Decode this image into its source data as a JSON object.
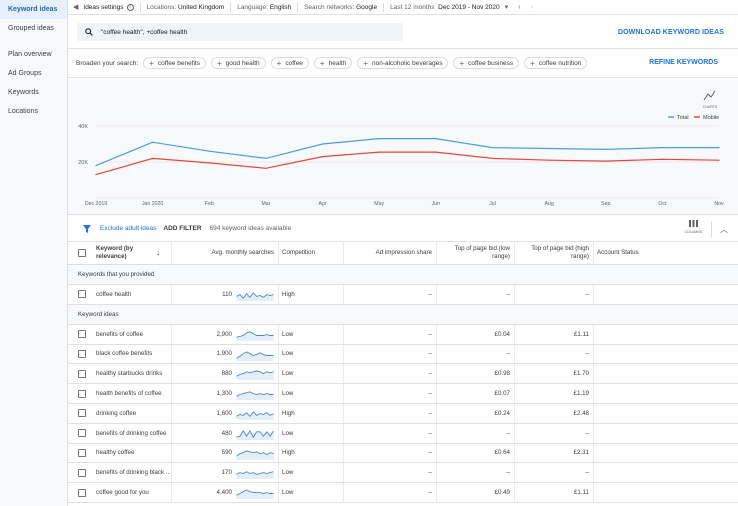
{
  "sidebar": {
    "items": [
      {
        "label": "Keyword ideas",
        "active": true
      },
      {
        "label": "Grouped ideas",
        "active": false
      },
      {
        "label": "Plan overview",
        "active": false
      },
      {
        "label": "Ad Groups",
        "active": false
      },
      {
        "label": "Keywords",
        "active": false
      },
      {
        "label": "Locations",
        "active": false
      }
    ]
  },
  "topbar": {
    "title": "Ideas settings",
    "locations_label": "Locations:",
    "locations_value": "United Kingdom",
    "language_label": "Language:",
    "language_value": "English",
    "networks_label": "Search networks:",
    "networks_value": "Google",
    "period_label": "Last 12 months",
    "period_value": "Dec 2019 - Nov 2020"
  },
  "search": {
    "query": "\"coffee health\", +coffee health",
    "download_label": "DOWNLOAD KEYWORD IDEAS"
  },
  "broaden": {
    "label": "Broaden your search:",
    "chips": [
      "coffee benefits",
      "good health",
      "coffee",
      "health",
      "non-alcoholic beverages",
      "coffee business",
      "coffee nutrition"
    ],
    "refine_label": "REFINE KEYWORDS"
  },
  "chart_controls": {
    "charts_label": "CHARTS",
    "legend_total": "Total",
    "legend_mobile": "Mobile",
    "colors": {
      "total": "#4a9fe0",
      "mobile": "#e8453c"
    }
  },
  "chart_data": {
    "type": "line",
    "x": [
      "Dec 2019",
      "Jan 2020",
      "Feb",
      "Mar",
      "Apr",
      "May",
      "Jun",
      "Jul",
      "Aug",
      "Sep",
      "Oct",
      "Nov"
    ],
    "ytick_labels": [
      "20K",
      "40K"
    ],
    "ylim": [
      0,
      40000
    ],
    "series": [
      {
        "name": "Total",
        "values": [
          18000,
          31000,
          26000,
          22000,
          30000,
          33000,
          33000,
          28000,
          27500,
          27000,
          28000,
          28000
        ]
      },
      {
        "name": "Mobile",
        "values": [
          13000,
          22000,
          19500,
          16500,
          23000,
          25500,
          25500,
          22000,
          21000,
          20500,
          21500,
          21000
        ]
      }
    ]
  },
  "filter": {
    "exclude_label": "Exclude adult ideas",
    "add_filter_label": "ADD FILTER",
    "available_label": "694 keyword ideas available",
    "columns_label": "COLUMNS"
  },
  "table": {
    "headers": {
      "keyword": "Keyword (by relevance)",
      "searches": "Avg. monthly searches",
      "competition": "Competition",
      "impression": "Ad impression share",
      "bid_low": "Top of page bid (low range)",
      "bid_high": "Top of page bid (high range)",
      "status": "Account Status"
    },
    "provided_section": "Keywords that you provided",
    "ideas_section": "Keyword ideas",
    "provided_rows": [
      {
        "keyword": "coffee health",
        "searches": "110",
        "competition": "High",
        "impression": "–",
        "bid_low": "–",
        "bid_high": "–",
        "spark": [
          0.4,
          0.6,
          0.2,
          0.7,
          0.3,
          0.8,
          0.4,
          0.5,
          0.3,
          0.6,
          0.5,
          0.6
        ]
      }
    ],
    "idea_rows": [
      {
        "keyword": "benefits of coffee",
        "searches": "2,900",
        "competition": "Low",
        "impression": "–",
        "bid_low": "£0.04",
        "bid_high": "£1.11",
        "spark": [
          0.3,
          0.4,
          0.5,
          0.8,
          0.9,
          0.7,
          0.5,
          0.5,
          0.5,
          0.6,
          0.5,
          0.5
        ]
      },
      {
        "keyword": "black coffee benefits",
        "searches": "1,900",
        "competition": "Low",
        "impression": "–",
        "bid_low": "–",
        "bid_high": "–",
        "spark": [
          0.2,
          0.4,
          0.7,
          0.9,
          0.7,
          0.5,
          0.6,
          0.8,
          0.6,
          0.5,
          0.5,
          0.5
        ]
      },
      {
        "keyword": "healthy starbucks drinks",
        "searches": "880",
        "competition": "Low",
        "impression": "–",
        "bid_low": "£0.98",
        "bid_high": "£1.70",
        "spark": [
          0.3,
          0.5,
          0.6,
          0.8,
          0.7,
          0.8,
          0.9,
          0.8,
          0.6,
          0.8,
          0.7,
          0.8
        ]
      },
      {
        "keyword": "health benefits of coffee",
        "searches": "1,300",
        "competition": "Low",
        "impression": "–",
        "bid_low": "£0.07",
        "bid_high": "£1.19",
        "spark": [
          0.3,
          0.5,
          0.6,
          0.7,
          0.8,
          0.6,
          0.5,
          0.6,
          0.5,
          0.6,
          0.5,
          0.5
        ]
      },
      {
        "keyword": "drinking coffee",
        "searches": "1,600",
        "competition": "High",
        "impression": "–",
        "bid_low": "£0.24",
        "bid_high": "£2.48",
        "spark": [
          0.3,
          0.5,
          0.4,
          0.7,
          0.3,
          0.8,
          0.4,
          0.6,
          0.5,
          0.7,
          0.4,
          0.6
        ]
      },
      {
        "keyword": "benefits of drinking coffee",
        "searches": "480",
        "competition": "Low",
        "impression": "–",
        "bid_low": "–",
        "bid_high": "–",
        "spark": [
          0.2,
          0.3,
          0.9,
          0.3,
          0.9,
          0.2,
          0.8,
          0.8,
          0.3,
          0.8,
          0.3,
          0.9
        ]
      },
      {
        "keyword": "healthy coffee",
        "searches": "590",
        "competition": "High",
        "impression": "–",
        "bid_low": "£0.64",
        "bid_high": "£2.31",
        "spark": [
          0.3,
          0.6,
          0.7,
          0.9,
          0.8,
          0.7,
          0.8,
          0.6,
          0.7,
          0.5,
          0.7,
          0.6
        ]
      },
      {
        "keyword": "benefits of drinking black ...",
        "searches": "170",
        "competition": "Low",
        "impression": "–",
        "bid_low": "–",
        "bid_high": "–",
        "spark": [
          0.4,
          0.6,
          0.5,
          0.7,
          0.5,
          0.6,
          0.4,
          0.5,
          0.6,
          0.5,
          0.6,
          0.7
        ]
      },
      {
        "keyword": "coffee good for you",
        "searches": "4,400",
        "competition": "Low",
        "impression": "–",
        "bid_low": "£0.49",
        "bid_high": "£1.11",
        "spark": [
          0.3,
          0.5,
          0.7,
          0.9,
          0.7,
          0.6,
          0.6,
          0.6,
          0.5,
          0.6,
          0.5,
          0.5
        ]
      }
    ]
  }
}
